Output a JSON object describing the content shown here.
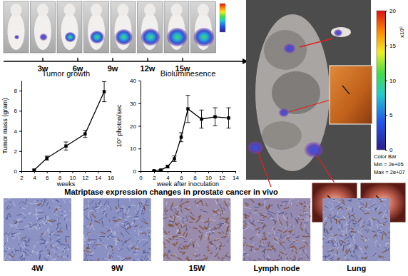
{
  "chart_data": [
    {
      "type": "line",
      "title": "Tumor growth",
      "x_label": "weeks",
      "y_label": "Tumor mass (gram)",
      "x": [
        4,
        6,
        9,
        12,
        15
      ],
      "series": [
        {
          "values": [
            0.1,
            1.3,
            2.5,
            3.7,
            7.9
          ],
          "errors": [
            0.1,
            0.2,
            0.4,
            0.35,
            1.0
          ],
          "color": "#000000",
          "marker": "square"
        }
      ],
      "xlim": [
        2,
        16
      ],
      "xticks": [
        2,
        4,
        6,
        8,
        10,
        12,
        14,
        16
      ],
      "ylim": [
        0,
        9
      ],
      "yticks": [
        0,
        2,
        4,
        6,
        8
      ]
    },
    {
      "type": "line",
      "title": "Bioluminesence",
      "x_label": "week after inoculation",
      "y_label": "10⁷ photon/sec",
      "x": [
        2,
        3,
        4,
        5,
        6,
        7,
        9,
        11,
        13
      ],
      "series": [
        {
          "values": [
            0.2,
            0.5,
            2,
            5.5,
            15,
            27.5,
            23,
            24,
            23.5
          ],
          "errors": [
            0.1,
            0.3,
            0.6,
            1.2,
            2,
            6,
            4,
            4,
            4.5
          ],
          "color": "#000000",
          "marker": "square"
        }
      ],
      "xlim": [
        0,
        14
      ],
      "xticks": [
        0,
        2,
        4,
        6,
        8,
        10,
        12,
        14
      ],
      "ylim": [
        0,
        40
      ],
      "yticks": [
        0,
        10,
        20,
        30,
        40
      ]
    }
  ],
  "timeline": {
    "labels": [
      "3w",
      "6w",
      "9w",
      "12w",
      "15w"
    ]
  },
  "colorbar": {
    "title": "Color Bar",
    "min_label": "Min = 2e+05",
    "max_label": "Max = 2e+07",
    "unit": "x10⁶",
    "range": [
      0,
      20
    ],
    "ticks": [
      0,
      5,
      10,
      15,
      20
    ]
  },
  "histology": {
    "title": "Matriptase expression changes in prostate cancer in vivo",
    "panels": [
      "4W",
      "9W",
      "15W",
      "Lymph node",
      "Lung"
    ]
  }
}
